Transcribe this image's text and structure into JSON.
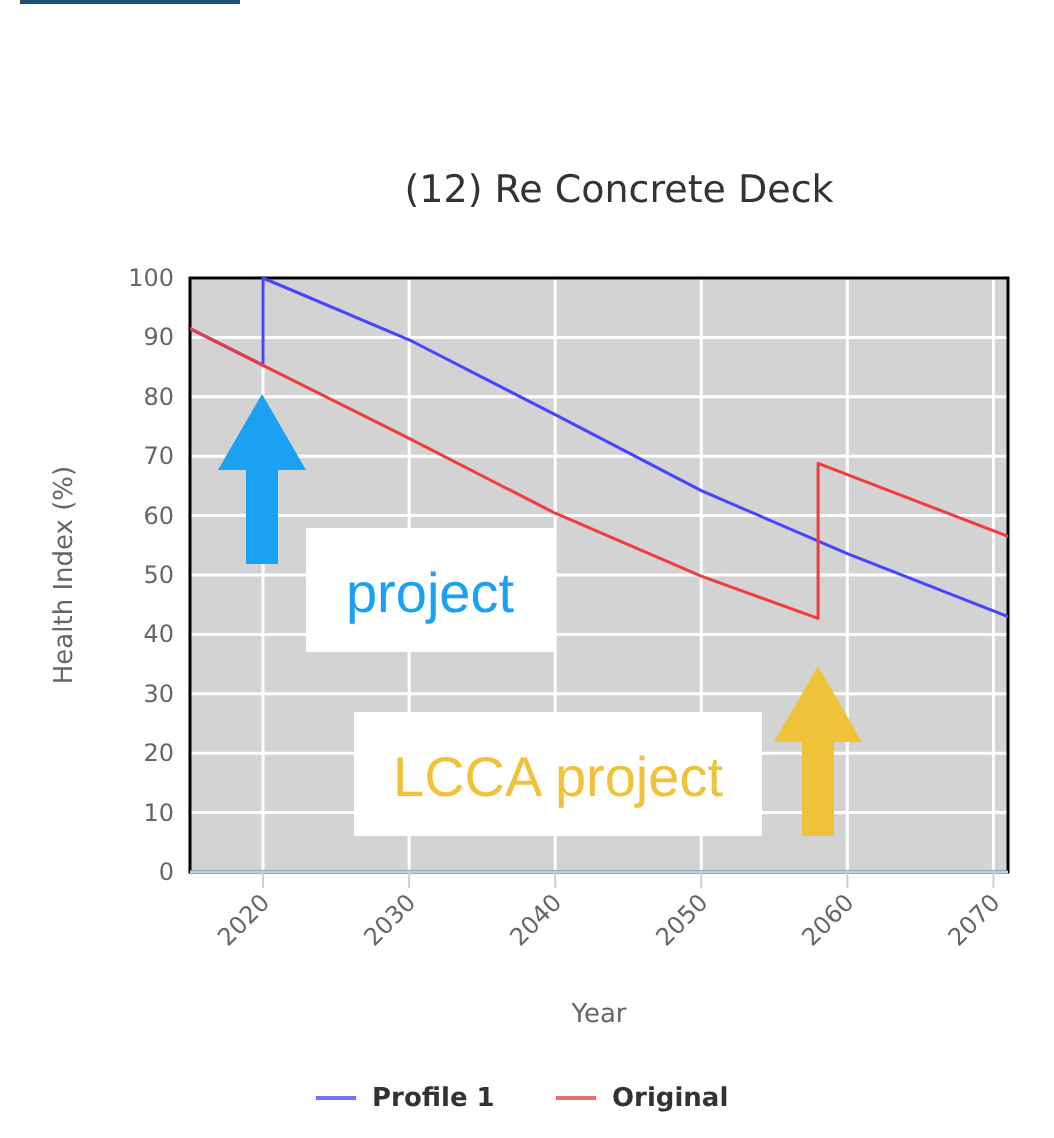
{
  "chart_data": {
    "type": "line",
    "title": "(12) Re Concrete Deck",
    "xlabel": "Year",
    "ylabel": "Health Index (%)",
    "xlim": [
      2015,
      2071
    ],
    "xticks": [
      2020,
      2030,
      2040,
      2050,
      2060,
      2070
    ],
    "ylim": [
      0,
      100
    ],
    "yticks": [
      0,
      10,
      20,
      30,
      40,
      50,
      60,
      70,
      80,
      90,
      100
    ],
    "grid": true,
    "legend": "bottom",
    "series": [
      {
        "name": "Profile 1",
        "color": "#4545ff",
        "x": [
          2015,
          2020,
          2020,
          2030,
          2040,
          2050,
          2060,
          2071
        ],
        "values": [
          91.5,
          85.3,
          100,
          89.6,
          77,
          64.2,
          53.6,
          43
        ]
      },
      {
        "name": "Original",
        "color": "#f03c3c",
        "x": [
          2015,
          2020,
          2030,
          2040,
          2050,
          2058,
          2058,
          2071
        ],
        "values": [
          91.5,
          85.3,
          73,
          60.4,
          49.8,
          42.7,
          68.8,
          56.5
        ]
      }
    ],
    "annotations": [
      "project",
      "LCCA project"
    ]
  }
}
